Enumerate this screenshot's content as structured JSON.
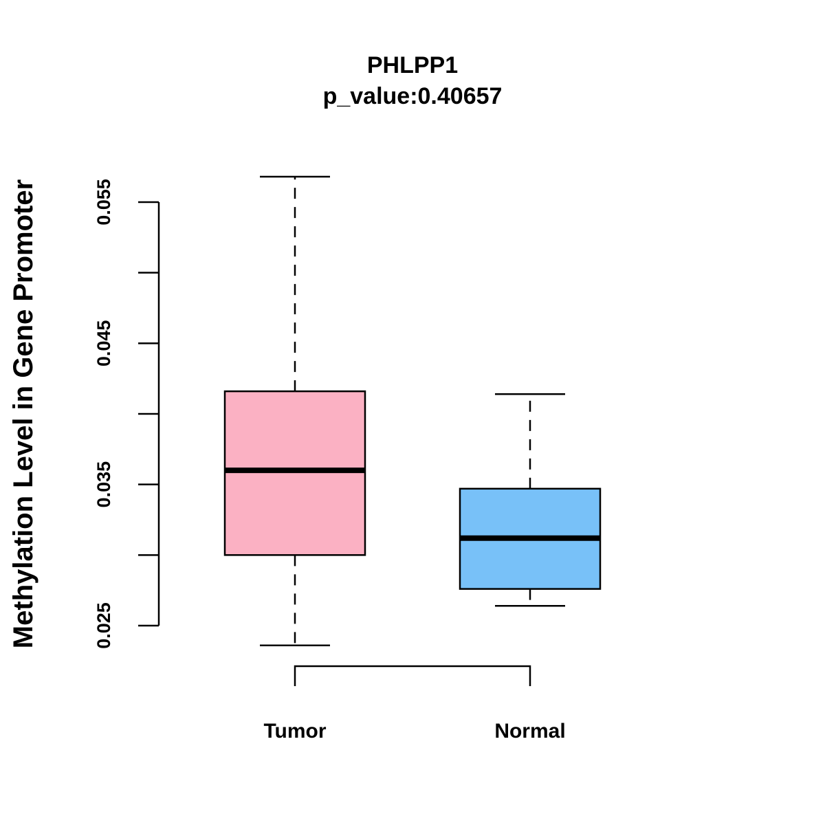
{
  "chart_data": {
    "type": "boxplot",
    "title": "PHLPP1",
    "subtitle": "p_value:0.40657",
    "xlabel": "",
    "ylabel": "Methylation Level in Gene Promoter",
    "ylim": [
      0.025,
      0.055
    ],
    "yticks": [
      0.025,
      0.03,
      0.035,
      0.04,
      0.045,
      0.05,
      0.055
    ],
    "ytick_labels": [
      "0.025",
      "",
      "0.035",
      "",
      "0.045",
      "",
      "0.055"
    ],
    "categories": [
      "Tumor",
      "Normal"
    ],
    "boxes": [
      {
        "name": "Tumor",
        "min": 0.0236,
        "q1": 0.03,
        "median": 0.036,
        "q3": 0.0416,
        "max": 0.0568,
        "color": "#FBB1C3"
      },
      {
        "name": "Normal",
        "min": 0.0264,
        "q1": 0.0276,
        "median": 0.0312,
        "q3": 0.0347,
        "max": 0.0414,
        "color": "#78C1F8"
      }
    ],
    "comparison_bracket": [
      "Tumor",
      "Normal"
    ],
    "grid": false,
    "legend": "none"
  }
}
